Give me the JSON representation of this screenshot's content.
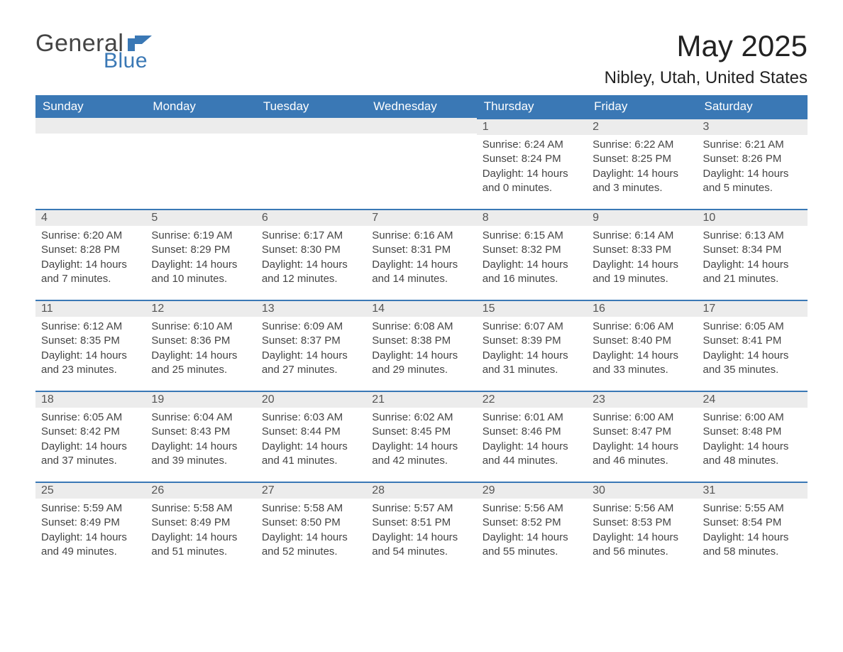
{
  "brand": {
    "text1": "General",
    "text2": "Blue",
    "text1_color": "#444444",
    "text2_color": "#3a78b5",
    "flag_color": "#3a78b5"
  },
  "header": {
    "title": "May 2025",
    "subtitle": "Nibley, Utah, United States"
  },
  "calendar": {
    "header_bg": "#3a78b5",
    "header_fg": "#ffffff",
    "daynum_bg": "#ececec",
    "row_border_color": "#3a78b5",
    "weekdays": [
      "Sunday",
      "Monday",
      "Tuesday",
      "Wednesday",
      "Thursday",
      "Friday",
      "Saturday"
    ],
    "weeks": [
      [
        null,
        null,
        null,
        null,
        {
          "n": "1",
          "sunrise": "6:24 AM",
          "sunset": "8:24 PM",
          "daylight": "14 hours and 0 minutes."
        },
        {
          "n": "2",
          "sunrise": "6:22 AM",
          "sunset": "8:25 PM",
          "daylight": "14 hours and 3 minutes."
        },
        {
          "n": "3",
          "sunrise": "6:21 AM",
          "sunset": "8:26 PM",
          "daylight": "14 hours and 5 minutes."
        }
      ],
      [
        {
          "n": "4",
          "sunrise": "6:20 AM",
          "sunset": "8:28 PM",
          "daylight": "14 hours and 7 minutes."
        },
        {
          "n": "5",
          "sunrise": "6:19 AM",
          "sunset": "8:29 PM",
          "daylight": "14 hours and 10 minutes."
        },
        {
          "n": "6",
          "sunrise": "6:17 AM",
          "sunset": "8:30 PM",
          "daylight": "14 hours and 12 minutes."
        },
        {
          "n": "7",
          "sunrise": "6:16 AM",
          "sunset": "8:31 PM",
          "daylight": "14 hours and 14 minutes."
        },
        {
          "n": "8",
          "sunrise": "6:15 AM",
          "sunset": "8:32 PM",
          "daylight": "14 hours and 16 minutes."
        },
        {
          "n": "9",
          "sunrise": "6:14 AM",
          "sunset": "8:33 PM",
          "daylight": "14 hours and 19 minutes."
        },
        {
          "n": "10",
          "sunrise": "6:13 AM",
          "sunset": "8:34 PM",
          "daylight": "14 hours and 21 minutes."
        }
      ],
      [
        {
          "n": "11",
          "sunrise": "6:12 AM",
          "sunset": "8:35 PM",
          "daylight": "14 hours and 23 minutes."
        },
        {
          "n": "12",
          "sunrise": "6:10 AM",
          "sunset": "8:36 PM",
          "daylight": "14 hours and 25 minutes."
        },
        {
          "n": "13",
          "sunrise": "6:09 AM",
          "sunset": "8:37 PM",
          "daylight": "14 hours and 27 minutes."
        },
        {
          "n": "14",
          "sunrise": "6:08 AM",
          "sunset": "8:38 PM",
          "daylight": "14 hours and 29 minutes."
        },
        {
          "n": "15",
          "sunrise": "6:07 AM",
          "sunset": "8:39 PM",
          "daylight": "14 hours and 31 minutes."
        },
        {
          "n": "16",
          "sunrise": "6:06 AM",
          "sunset": "8:40 PM",
          "daylight": "14 hours and 33 minutes."
        },
        {
          "n": "17",
          "sunrise": "6:05 AM",
          "sunset": "8:41 PM",
          "daylight": "14 hours and 35 minutes."
        }
      ],
      [
        {
          "n": "18",
          "sunrise": "6:05 AM",
          "sunset": "8:42 PM",
          "daylight": "14 hours and 37 minutes."
        },
        {
          "n": "19",
          "sunrise": "6:04 AM",
          "sunset": "8:43 PM",
          "daylight": "14 hours and 39 minutes."
        },
        {
          "n": "20",
          "sunrise": "6:03 AM",
          "sunset": "8:44 PM",
          "daylight": "14 hours and 41 minutes."
        },
        {
          "n": "21",
          "sunrise": "6:02 AM",
          "sunset": "8:45 PM",
          "daylight": "14 hours and 42 minutes."
        },
        {
          "n": "22",
          "sunrise": "6:01 AM",
          "sunset": "8:46 PM",
          "daylight": "14 hours and 44 minutes."
        },
        {
          "n": "23",
          "sunrise": "6:00 AM",
          "sunset": "8:47 PM",
          "daylight": "14 hours and 46 minutes."
        },
        {
          "n": "24",
          "sunrise": "6:00 AM",
          "sunset": "8:48 PM",
          "daylight": "14 hours and 48 minutes."
        }
      ],
      [
        {
          "n": "25",
          "sunrise": "5:59 AM",
          "sunset": "8:49 PM",
          "daylight": "14 hours and 49 minutes."
        },
        {
          "n": "26",
          "sunrise": "5:58 AM",
          "sunset": "8:49 PM",
          "daylight": "14 hours and 51 minutes."
        },
        {
          "n": "27",
          "sunrise": "5:58 AM",
          "sunset": "8:50 PM",
          "daylight": "14 hours and 52 minutes."
        },
        {
          "n": "28",
          "sunrise": "5:57 AM",
          "sunset": "8:51 PM",
          "daylight": "14 hours and 54 minutes."
        },
        {
          "n": "29",
          "sunrise": "5:56 AM",
          "sunset": "8:52 PM",
          "daylight": "14 hours and 55 minutes."
        },
        {
          "n": "30",
          "sunrise": "5:56 AM",
          "sunset": "8:53 PM",
          "daylight": "14 hours and 56 minutes."
        },
        {
          "n": "31",
          "sunrise": "5:55 AM",
          "sunset": "8:54 PM",
          "daylight": "14 hours and 58 minutes."
        }
      ]
    ],
    "labels": {
      "sunrise": "Sunrise: ",
      "sunset": "Sunset: ",
      "daylight": "Daylight: "
    }
  }
}
